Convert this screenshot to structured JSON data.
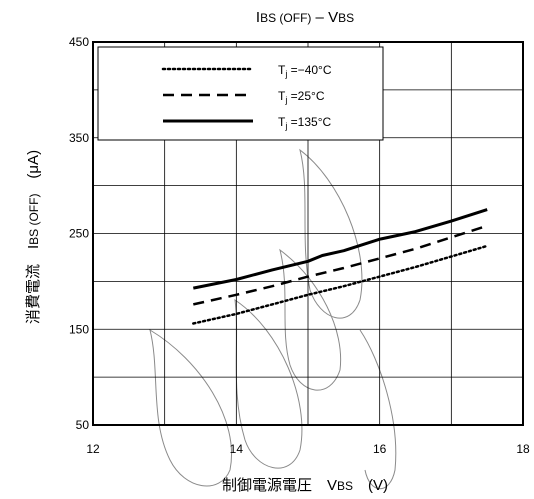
{
  "chart_data": {
    "type": "line",
    "title": {
      "main": "I",
      "sub": "BS (OFF)",
      "rest": " – V",
      "sub2": "BS"
    },
    "xlabel": {
      "main": "制御電源電圧　V",
      "sub": "BS",
      "rest": "　(V)"
    },
    "ylabel": {
      "main": "消費電流　I",
      "sub": "BS (OFF)",
      "rest": "　(μA)"
    },
    "xlim": [
      12,
      18
    ],
    "ylim": [
      50,
      450
    ],
    "x_ticks": [
      12,
      14,
      16,
      18
    ],
    "y_ticks": [
      50,
      150,
      250,
      350,
      450
    ],
    "x_tick_labels": [
      "12",
      "14",
      "16",
      "18"
    ],
    "y_tick_labels": [
      "50",
      "150",
      "250",
      "350",
      "450"
    ],
    "grid": {
      "x_step": 1,
      "y_step": 50
    },
    "legend_position": "top-left",
    "series": [
      {
        "name": "T",
        "name_sub": "j",
        "name_rest": " =−40°C",
        "style": "dotted",
        "x": [
          13.4,
          14.0,
          14.5,
          15.0,
          15.5,
          16.0,
          16.5,
          17.0,
          17.5
        ],
        "y": [
          156,
          166,
          176,
          186,
          195,
          205,
          215,
          226,
          237
        ]
      },
      {
        "name": "T",
        "name_sub": "j",
        "name_rest": " =25°C",
        "style": "dashed",
        "x": [
          13.4,
          14.0,
          14.5,
          15.0,
          15.5,
          16.0,
          16.5,
          17.0,
          17.5
        ],
        "y": [
          176,
          186,
          195,
          205,
          214,
          224,
          234,
          246,
          258
        ]
      },
      {
        "name": "T",
        "name_sub": "j",
        "name_rest": " =135°C",
        "style": "solid",
        "x": [
          13.4,
          14.0,
          14.5,
          15.0,
          15.2,
          15.5,
          16.0,
          16.5,
          17.0,
          17.5
        ],
        "y": [
          193,
          202,
          212,
          221,
          227,
          232,
          244,
          252,
          263,
          275
        ]
      }
    ]
  }
}
